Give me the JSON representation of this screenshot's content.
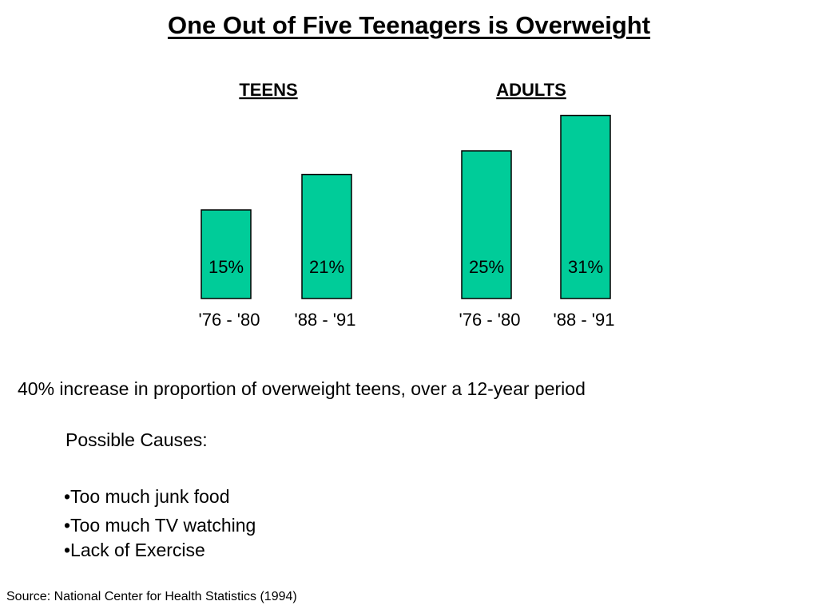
{
  "title": "One Out of Five Teenagers is Overweight",
  "colors": {
    "bar": "#00CC99",
    "bar_stroke": "#000000"
  },
  "chart_data": {
    "type": "bar",
    "groups": [
      {
        "name": "TEENS",
        "categories": [
          "'76 - '80",
          "'88 - '91"
        ],
        "values": [
          15,
          21
        ],
        "labels": [
          "15%",
          "21%"
        ]
      },
      {
        "name": "ADULTS",
        "categories": [
          "'76 - '80",
          "'88 - '91"
        ],
        "values": [
          25,
          31
        ],
        "labels": [
          "25%",
          "31%"
        ]
      }
    ],
    "unit": "%",
    "grid": false,
    "legend": "none"
  },
  "summary": "40% increase in proportion of overweight teens, over a 12-year period",
  "causes": {
    "heading": "Possible Causes:",
    "items": [
      "•Too much junk food",
      "•Too much TV watching",
      "•Lack of Exercise"
    ]
  },
  "source": "Source: National Center for Health Statistics (1994)"
}
